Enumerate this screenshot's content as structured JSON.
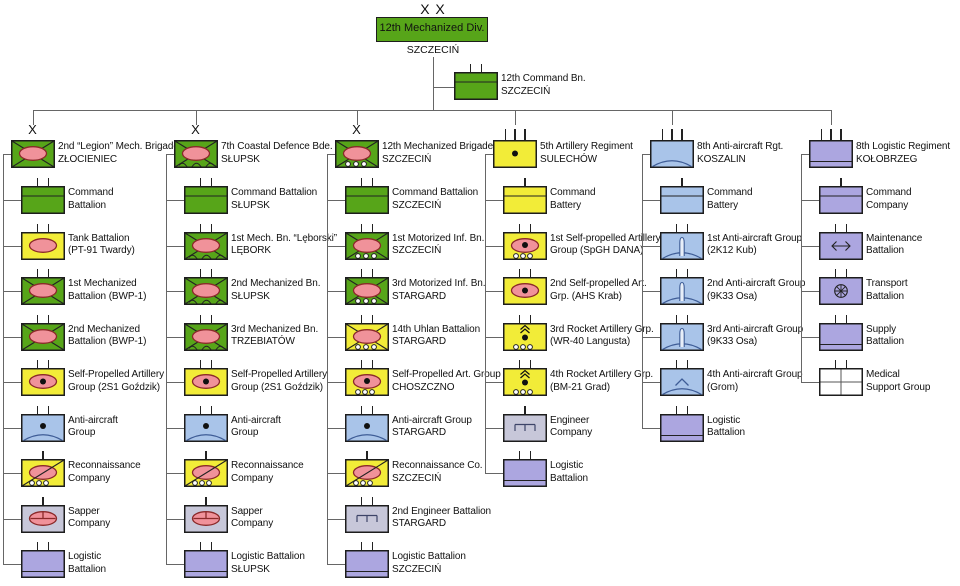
{
  "palette": {
    "green": "#57A519",
    "yellow": "#F2EC38",
    "blue": "#A9C4E9",
    "lavender": "#ACA6E0",
    "grey": "#C7C7D9",
    "white": "#FFFFFF",
    "oval": "#F0929A",
    "oval_stroke": "#8B2A2A",
    "border": "#1D1D1D",
    "line": "#666666",
    "arc": "#3E5C96"
  },
  "root": {
    "echelon": "X X",
    "name": "12th Mechanized Div.",
    "location": "SZCZECIŃ"
  },
  "command_unit": {
    "ticks": 2,
    "symbol": "command",
    "color": "green",
    "name": "12th Command Bn.",
    "location": "SZCZECIŃ"
  },
  "columns": [
    {
      "header": {
        "echelon": "X",
        "symbol": "mech",
        "color": "green",
        "name": "2nd “Legion” Mech. Brigade",
        "location": "ZŁOCIENIEC"
      },
      "units": [
        {
          "symbol": "command",
          "color": "green",
          "ticks": 2,
          "line1": "Command",
          "line2": "Battalion"
        },
        {
          "symbol": "tank",
          "color": "yellow",
          "ticks": 2,
          "line1": "Tank Battalion",
          "line2": "(PT-91 Twardy)"
        },
        {
          "symbol": "mech",
          "color": "green",
          "ticks": 2,
          "line1": "1st Mechanized",
          "line2": "Battalion (BWP-1)"
        },
        {
          "symbol": "mech",
          "color": "green",
          "ticks": 2,
          "line1": "2nd Mechanized",
          "line2": "Battalion (BWP-1)"
        },
        {
          "symbol": "spart",
          "color": "yellow",
          "ticks": 2,
          "line1": "Self-Propelled Artillery",
          "line2": "Group (2S1 Goździk)"
        },
        {
          "symbol": "aa",
          "color": "blue",
          "ticks": 2,
          "line1": "Anti-aircraft",
          "line2": "Group"
        },
        {
          "symbol": "recon",
          "color": "yellow",
          "ticks": 1,
          "line1": "Reconnaissance",
          "line2": "Company"
        },
        {
          "symbol": "sapper",
          "color": "grey",
          "ticks": 1,
          "line1": "Sapper",
          "line2": "Company"
        },
        {
          "symbol": "logistic",
          "color": "lavender",
          "ticks": 2,
          "line1": "Logistic",
          "line2": "Battalion"
        }
      ]
    },
    {
      "header": {
        "echelon": "X",
        "symbol": "coastal",
        "color": "green",
        "name": "7th Coastal Defence Bde.",
        "location": "SŁUPSK"
      },
      "units": [
        {
          "symbol": "command",
          "color": "green",
          "ticks": 2,
          "line1": "Command Battalion",
          "line2": "SŁUPSK"
        },
        {
          "symbol": "coastal",
          "color": "green",
          "ticks": 2,
          "line1": "1st Mech. Bn. “Lęborski”",
          "line2": "LĘBORK"
        },
        {
          "symbol": "coastal",
          "color": "green",
          "ticks": 2,
          "line1": "2nd Mechanized Bn.",
          "line2": "SŁUPSK"
        },
        {
          "symbol": "coastal",
          "color": "green",
          "ticks": 2,
          "line1": "3rd Mechanized Bn.",
          "line2": "TRZEBIATÓW"
        },
        {
          "symbol": "spart",
          "color": "yellow",
          "ticks": 2,
          "line1": "Self-Propelled Artillery",
          "line2": "Group (2S1 Goździk)"
        },
        {
          "symbol": "aa",
          "color": "blue",
          "ticks": 2,
          "line1": "Anti-aircraft",
          "line2": "Group"
        },
        {
          "symbol": "recon",
          "color": "yellow",
          "ticks": 1,
          "line1": "Reconnaissance",
          "line2": "Company"
        },
        {
          "symbol": "sapper",
          "color": "grey",
          "ticks": 1,
          "line1": "Sapper",
          "line2": "Company"
        },
        {
          "symbol": "logistic",
          "color": "lavender",
          "ticks": 2,
          "line1": "Logistic Battalion",
          "line2": "SŁUPSK"
        }
      ]
    },
    {
      "header": {
        "echelon": "X",
        "symbol": "motorized",
        "color": "green",
        "name": "12th Mechanized Brigade",
        "location": "SZCZECIŃ"
      },
      "units": [
        {
          "symbol": "command",
          "color": "green",
          "ticks": 2,
          "line1": "Command Battalion",
          "line2": "SZCZECIŃ"
        },
        {
          "symbol": "motorized",
          "color": "green",
          "ticks": 2,
          "line1": "1st Motorized Inf. Bn.",
          "line2": "SZCZECIŃ"
        },
        {
          "symbol": "motorized",
          "color": "green",
          "ticks": 2,
          "line1": "3rd Motorized Inf. Bn.",
          "line2": "STARGARD"
        },
        {
          "symbol": "motorized",
          "color": "yellow",
          "ticks": 2,
          "line1": "14th Uhlan Battalion",
          "line2": "STARGARD"
        },
        {
          "symbol": "spart_w",
          "color": "yellow",
          "ticks": 2,
          "line1": "Self-Propelled Art. Group",
          "line2": "CHOSZCZNO"
        },
        {
          "symbol": "aa",
          "color": "blue",
          "ticks": 2,
          "line1": "Anti-aircraft Group",
          "line2": "STARGARD"
        },
        {
          "symbol": "recon",
          "color": "yellow",
          "ticks": 1,
          "line1": "Reconnaissance Co.",
          "line2": "SZCZECIŃ"
        },
        {
          "symbol": "engineer",
          "color": "grey",
          "ticks": 2,
          "line1": "2nd Engineer Battalion",
          "line2": "STARGARD"
        },
        {
          "symbol": "logistic",
          "color": "lavender",
          "ticks": 2,
          "line1": "Logistic Battalion",
          "line2": "SZCZECIŃ"
        }
      ]
    },
    {
      "header": {
        "echelon": "|||",
        "symbol": "art",
        "color": "yellow",
        "name": "5th Artillery Regiment",
        "location": "SULECHÓW"
      },
      "units": [
        {
          "symbol": "command",
          "color": "yellow",
          "ticks": 1,
          "line1": "Command",
          "line2": "Battery"
        },
        {
          "symbol": "spart_w",
          "color": "yellow",
          "ticks": 2,
          "line1": "1st Self-propelled Artillery",
          "line2": "Group (SpGH DANA)"
        },
        {
          "symbol": "spart",
          "color": "yellow",
          "ticks": 2,
          "line1": "2nd Self-propelled Art.",
          "line2": "Grp. (AHS Krab)"
        },
        {
          "symbol": "rocket",
          "color": "yellow",
          "ticks": 2,
          "line1": "3rd Rocket Artillery Grp.",
          "line2": "(WR-40 Langusta)"
        },
        {
          "symbol": "rocket",
          "color": "yellow",
          "ticks": 2,
          "line1": "4th Rocket Artillery Grp.",
          "line2": "(BM-21 Grad)"
        },
        {
          "symbol": "engineer",
          "color": "grey",
          "ticks": 1,
          "line1": "Engineer",
          "line2": "Company"
        },
        {
          "symbol": "logistic",
          "color": "lavender",
          "ticks": 2,
          "line1": "Logistic",
          "line2": "Battalion"
        }
      ]
    },
    {
      "header": {
        "echelon": "|||",
        "symbol": "aa_plain",
        "color": "blue",
        "name": "8th Anti-aircraft Rgt.",
        "location": "KOSZALIN"
      },
      "units": [
        {
          "symbol": "command",
          "color": "blue",
          "ticks": 1,
          "line1": "Command",
          "line2": "Battery"
        },
        {
          "symbol": "aa_missile",
          "color": "blue",
          "ticks": 2,
          "line1": "1st Anti-aircraft Group",
          "line2": "(2K12 Kub)"
        },
        {
          "symbol": "aa_missile",
          "color": "blue",
          "ticks": 2,
          "line1": "2nd Anti-aircraft Group",
          "line2": "(9K33 Osa)"
        },
        {
          "symbol": "aa_missile",
          "color": "blue",
          "ticks": 2,
          "line1": "3rd Anti-aircraft Group",
          "line2": "(9K33 Osa)"
        },
        {
          "symbol": "aa_chevron",
          "color": "blue",
          "ticks": 2,
          "line1": "4th Anti-aircraft Group",
          "line2": "(Grom)"
        },
        {
          "symbol": "logistic",
          "color": "lavender",
          "ticks": 2,
          "line1": "Logistic",
          "line2": "Battalion"
        }
      ]
    },
    {
      "header": {
        "echelon": "|||",
        "symbol": "logistic",
        "color": "lavender",
        "name": "8th Logistic Regiment",
        "location": "KOŁOBRZEG"
      },
      "units": [
        {
          "symbol": "command",
          "color": "lavender",
          "ticks": 1,
          "line1": "Command",
          "line2": "Company"
        },
        {
          "symbol": "maintenance",
          "color": "lavender",
          "ticks": 2,
          "line1": "Maintenance",
          "line2": "Battalion"
        },
        {
          "symbol": "transport",
          "color": "lavender",
          "ticks": 2,
          "line1": "Transport",
          "line2": "Battalion"
        },
        {
          "symbol": "logistic",
          "color": "lavender",
          "ticks": 2,
          "line1": "Supply",
          "line2": "Battalion"
        },
        {
          "symbol": "medical",
          "color": "white",
          "ticks": 2,
          "line1": "Medical",
          "line2": "Support Group"
        }
      ]
    }
  ]
}
